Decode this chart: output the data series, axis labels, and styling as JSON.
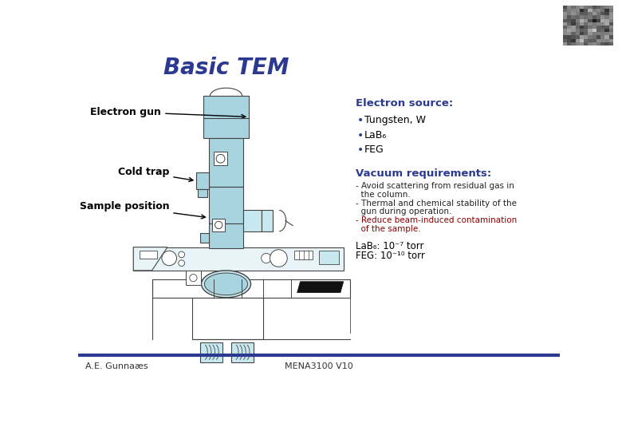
{
  "title": "Basic TEM",
  "title_color": "#2B3990",
  "title_fontsize": 20,
  "bg_color": "#FFFFFF",
  "tem_color": "#A8D4E0",
  "tem_light": "#C8E8F0",
  "outline_color": "#444444",
  "header_color": "#2B3990",
  "right_header1": "Electron source:",
  "bullet1": "Tungsten, W",
  "bullet2": "LaB₆",
  "bullet3": "FEG",
  "right_header2": "Vacuum requirements:",
  "vacuum_line1": "- Avoid scattering from residual gas in",
  "vacuum_line2": "  the column.",
  "vacuum_line3": "- Thermal and chemical stability of the",
  "vacuum_line4": "  gun during operation.",
  "vacuum_line5": "- Reduce beam-induced contamination",
  "vacuum_line6": "  of the sample.",
  "vacuum_note1": "LaB₆: 10⁻⁷ torr",
  "vacuum_note2": "FEG: 10⁻¹⁰ torr",
  "label_gun": "Electron gun",
  "label_cold": "Cold trap",
  "label_sample": "Sample position",
  "footer_left": "A.E. Gunnaæs",
  "footer_center": "MENA3100 V10",
  "footer_line_color": "#2B3990"
}
